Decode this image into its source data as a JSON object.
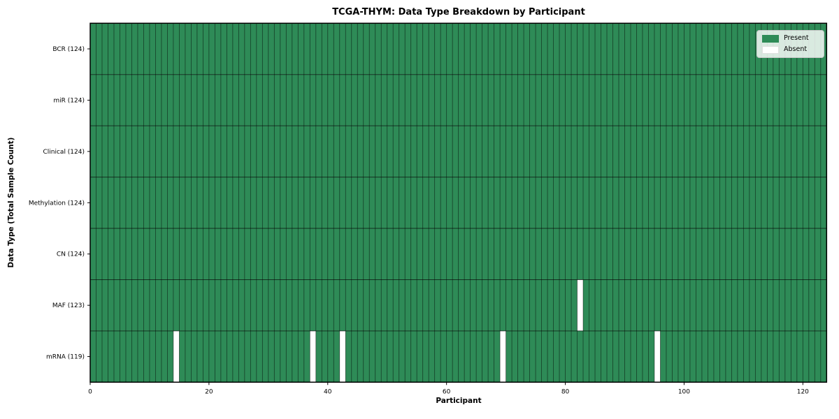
{
  "title": "TCGA-THYM: Data Type Breakdown by Participant",
  "colors": {
    "present": "#2e8b57",
    "absent": "#ffffff",
    "cell_edge": "rgba(0,0,0,0.55)",
    "row_separator": "rgba(0,0,0,0.65)",
    "plot_border": "#000000",
    "legend_border": "#c7c7c7"
  },
  "legend_labels": [
    "Present",
    "Absent"
  ],
  "chart_data": {
    "type": "heatmap",
    "title": "TCGA-THYM: Data Type Breakdown by Participant",
    "xlabel": "Participant",
    "ylabel": "Data Type (Total Sample Count)",
    "xlim": [
      0,
      124
    ],
    "n_participants": 124,
    "x_ticks": [
      0,
      20,
      40,
      60,
      80,
      100,
      120
    ],
    "legend": [
      "Present",
      "Absent"
    ],
    "legend_position": "upper right",
    "grid": "cell-edges",
    "rows": [
      {
        "data_type": "BCR",
        "label": "BCR (124)",
        "total": 124,
        "absent_participants": []
      },
      {
        "data_type": "miR",
        "label": "miR (124)",
        "total": 124,
        "absent_participants": []
      },
      {
        "data_type": "Clinical",
        "label": "Clinical (124)",
        "total": 124,
        "absent_participants": []
      },
      {
        "data_type": "Methylation",
        "label": "Methylation (124)",
        "total": 124,
        "absent_participants": []
      },
      {
        "data_type": "CN",
        "label": "CN (124)",
        "total": 124,
        "absent_participants": []
      },
      {
        "data_type": "MAF",
        "label": "MAF (123)",
        "total": 123,
        "absent_participants": [
          82
        ]
      },
      {
        "data_type": "mRNA",
        "label": "mRNA (119)",
        "total": 119,
        "absent_participants": [
          14,
          37,
          42,
          69,
          95
        ]
      }
    ]
  }
}
